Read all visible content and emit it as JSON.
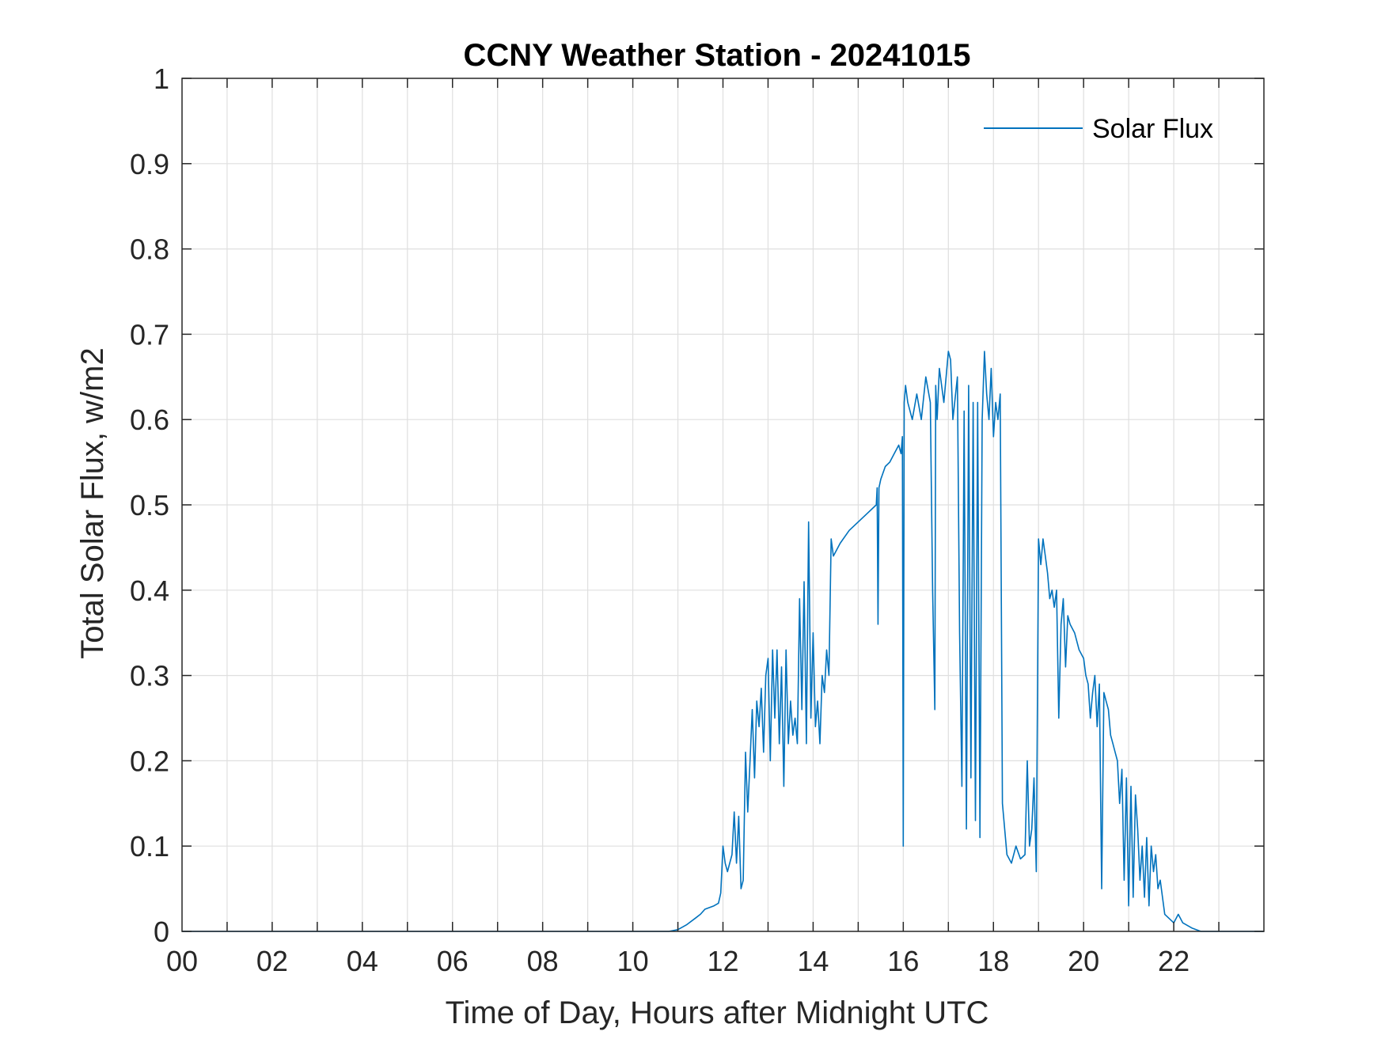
{
  "chart_data": {
    "type": "line",
    "title": "CCNY Weather Station - 20241015",
    "xlabel": "Time of Day, Hours after Midnight UTC",
    "ylabel": "Total Solar Flux, w/m2",
    "xlim": [
      0,
      24
    ],
    "ylim": [
      0,
      1
    ],
    "grid": true,
    "legend_location": "top-right",
    "x_tick_values": [
      0,
      2,
      4,
      6,
      8,
      10,
      12,
      14,
      16,
      18,
      20,
      22
    ],
    "x_tick_labels": [
      "00",
      "02",
      "04",
      "06",
      "08",
      "10",
      "12",
      "14",
      "16",
      "18",
      "20",
      "22"
    ],
    "y_tick_values": [
      0,
      0.1,
      0.2,
      0.3,
      0.4,
      0.5,
      0.6,
      0.7,
      0.8,
      0.9,
      1
    ],
    "y_tick_labels": [
      "0",
      "0.1",
      "0.2",
      "0.3",
      "0.4",
      "0.5",
      "0.6",
      "0.7",
      "0.8",
      "0.9",
      "1"
    ],
    "colors": {
      "series": "#0072BD",
      "grid": "#dfdfdf",
      "axis": "#262626"
    },
    "series": [
      {
        "name": "Solar Flux",
        "x": [
          0,
          10.8,
          11.0,
          11.2,
          11.4,
          11.5,
          11.6,
          11.8,
          11.9,
          11.95,
          12.0,
          12.05,
          12.1,
          12.2,
          12.25,
          12.3,
          12.35,
          12.4,
          12.45,
          12.5,
          12.55,
          12.6,
          12.65,
          12.7,
          12.75,
          12.8,
          12.85,
          12.9,
          12.95,
          13.0,
          13.05,
          13.1,
          13.15,
          13.2,
          13.25,
          13.3,
          13.35,
          13.4,
          13.45,
          13.5,
          13.55,
          13.6,
          13.65,
          13.7,
          13.75,
          13.8,
          13.85,
          13.9,
          13.95,
          14.0,
          14.05,
          14.1,
          14.15,
          14.2,
          14.25,
          14.3,
          14.35,
          14.4,
          14.45,
          14.5,
          14.6,
          14.8,
          15.0,
          15.2,
          15.4,
          15.42,
          15.44,
          15.46,
          15.5,
          15.6,
          15.7,
          15.8,
          15.9,
          15.95,
          15.98,
          16.0,
          16.02,
          16.05,
          16.1,
          16.2,
          16.3,
          16.4,
          16.5,
          16.6,
          16.65,
          16.7,
          16.72,
          16.75,
          16.8,
          16.9,
          17.0,
          17.05,
          17.1,
          17.2,
          17.25,
          17.3,
          17.35,
          17.4,
          17.45,
          17.5,
          17.55,
          17.6,
          17.65,
          17.7,
          17.75,
          17.8,
          17.85,
          17.9,
          17.95,
          18.0,
          18.05,
          18.1,
          18.15,
          18.2,
          18.3,
          18.4,
          18.5,
          18.6,
          18.7,
          18.75,
          18.8,
          18.85,
          18.9,
          18.95,
          19.0,
          19.05,
          19.1,
          19.15,
          19.2,
          19.25,
          19.3,
          19.35,
          19.4,
          19.45,
          19.5,
          19.55,
          19.6,
          19.65,
          19.7,
          19.8,
          19.9,
          20.0,
          20.05,
          20.1,
          20.15,
          20.2,
          20.25,
          20.3,
          20.35,
          20.4,
          20.45,
          20.5,
          20.55,
          20.6,
          20.65,
          20.7,
          20.75,
          20.8,
          20.85,
          20.9,
          20.95,
          21.0,
          21.05,
          21.1,
          21.15,
          21.2,
          21.25,
          21.3,
          21.35,
          21.4,
          21.45,
          21.5,
          21.55,
          21.6,
          21.65,
          21.7,
          21.8,
          21.9,
          22.0,
          22.1,
          22.2,
          22.4,
          22.6,
          22.8,
          24.0
        ],
        "values": [
          0,
          0,
          0.002,
          0.008,
          0.016,
          0.02,
          0.026,
          0.03,
          0.033,
          0.045,
          0.1,
          0.08,
          0.07,
          0.09,
          0.14,
          0.08,
          0.135,
          0.05,
          0.06,
          0.21,
          0.14,
          0.2,
          0.26,
          0.18,
          0.27,
          0.24,
          0.285,
          0.21,
          0.3,
          0.32,
          0.2,
          0.33,
          0.25,
          0.33,
          0.22,
          0.31,
          0.17,
          0.33,
          0.22,
          0.27,
          0.23,
          0.25,
          0.22,
          0.39,
          0.26,
          0.41,
          0.22,
          0.48,
          0.25,
          0.35,
          0.24,
          0.27,
          0.22,
          0.3,
          0.28,
          0.33,
          0.3,
          0.46,
          0.44,
          0.445,
          0.455,
          0.47,
          0.48,
          0.49,
          0.5,
          0.52,
          0.36,
          0.52,
          0.53,
          0.545,
          0.55,
          0.56,
          0.57,
          0.56,
          0.58,
          0.1,
          0.62,
          0.64,
          0.62,
          0.6,
          0.63,
          0.6,
          0.65,
          0.62,
          0.4,
          0.26,
          0.64,
          0.6,
          0.66,
          0.62,
          0.68,
          0.67,
          0.6,
          0.65,
          0.35,
          0.17,
          0.61,
          0.12,
          0.64,
          0.18,
          0.62,
          0.13,
          0.62,
          0.11,
          0.6,
          0.68,
          0.63,
          0.6,
          0.66,
          0.58,
          0.62,
          0.6,
          0.63,
          0.15,
          0.09,
          0.08,
          0.1,
          0.085,
          0.09,
          0.2,
          0.1,
          0.12,
          0.18,
          0.07,
          0.46,
          0.43,
          0.46,
          0.44,
          0.42,
          0.39,
          0.4,
          0.38,
          0.4,
          0.25,
          0.36,
          0.39,
          0.31,
          0.37,
          0.36,
          0.35,
          0.33,
          0.32,
          0.3,
          0.29,
          0.25,
          0.28,
          0.3,
          0.24,
          0.29,
          0.05,
          0.28,
          0.27,
          0.26,
          0.23,
          0.22,
          0.21,
          0.2,
          0.15,
          0.19,
          0.06,
          0.18,
          0.03,
          0.17,
          0.04,
          0.16,
          0.12,
          0.06,
          0.1,
          0.04,
          0.11,
          0.03,
          0.1,
          0.07,
          0.09,
          0.05,
          0.06,
          0.02,
          0.015,
          0.01,
          0.02,
          0.01,
          0.004,
          0,
          0,
          0
        ]
      }
    ]
  }
}
